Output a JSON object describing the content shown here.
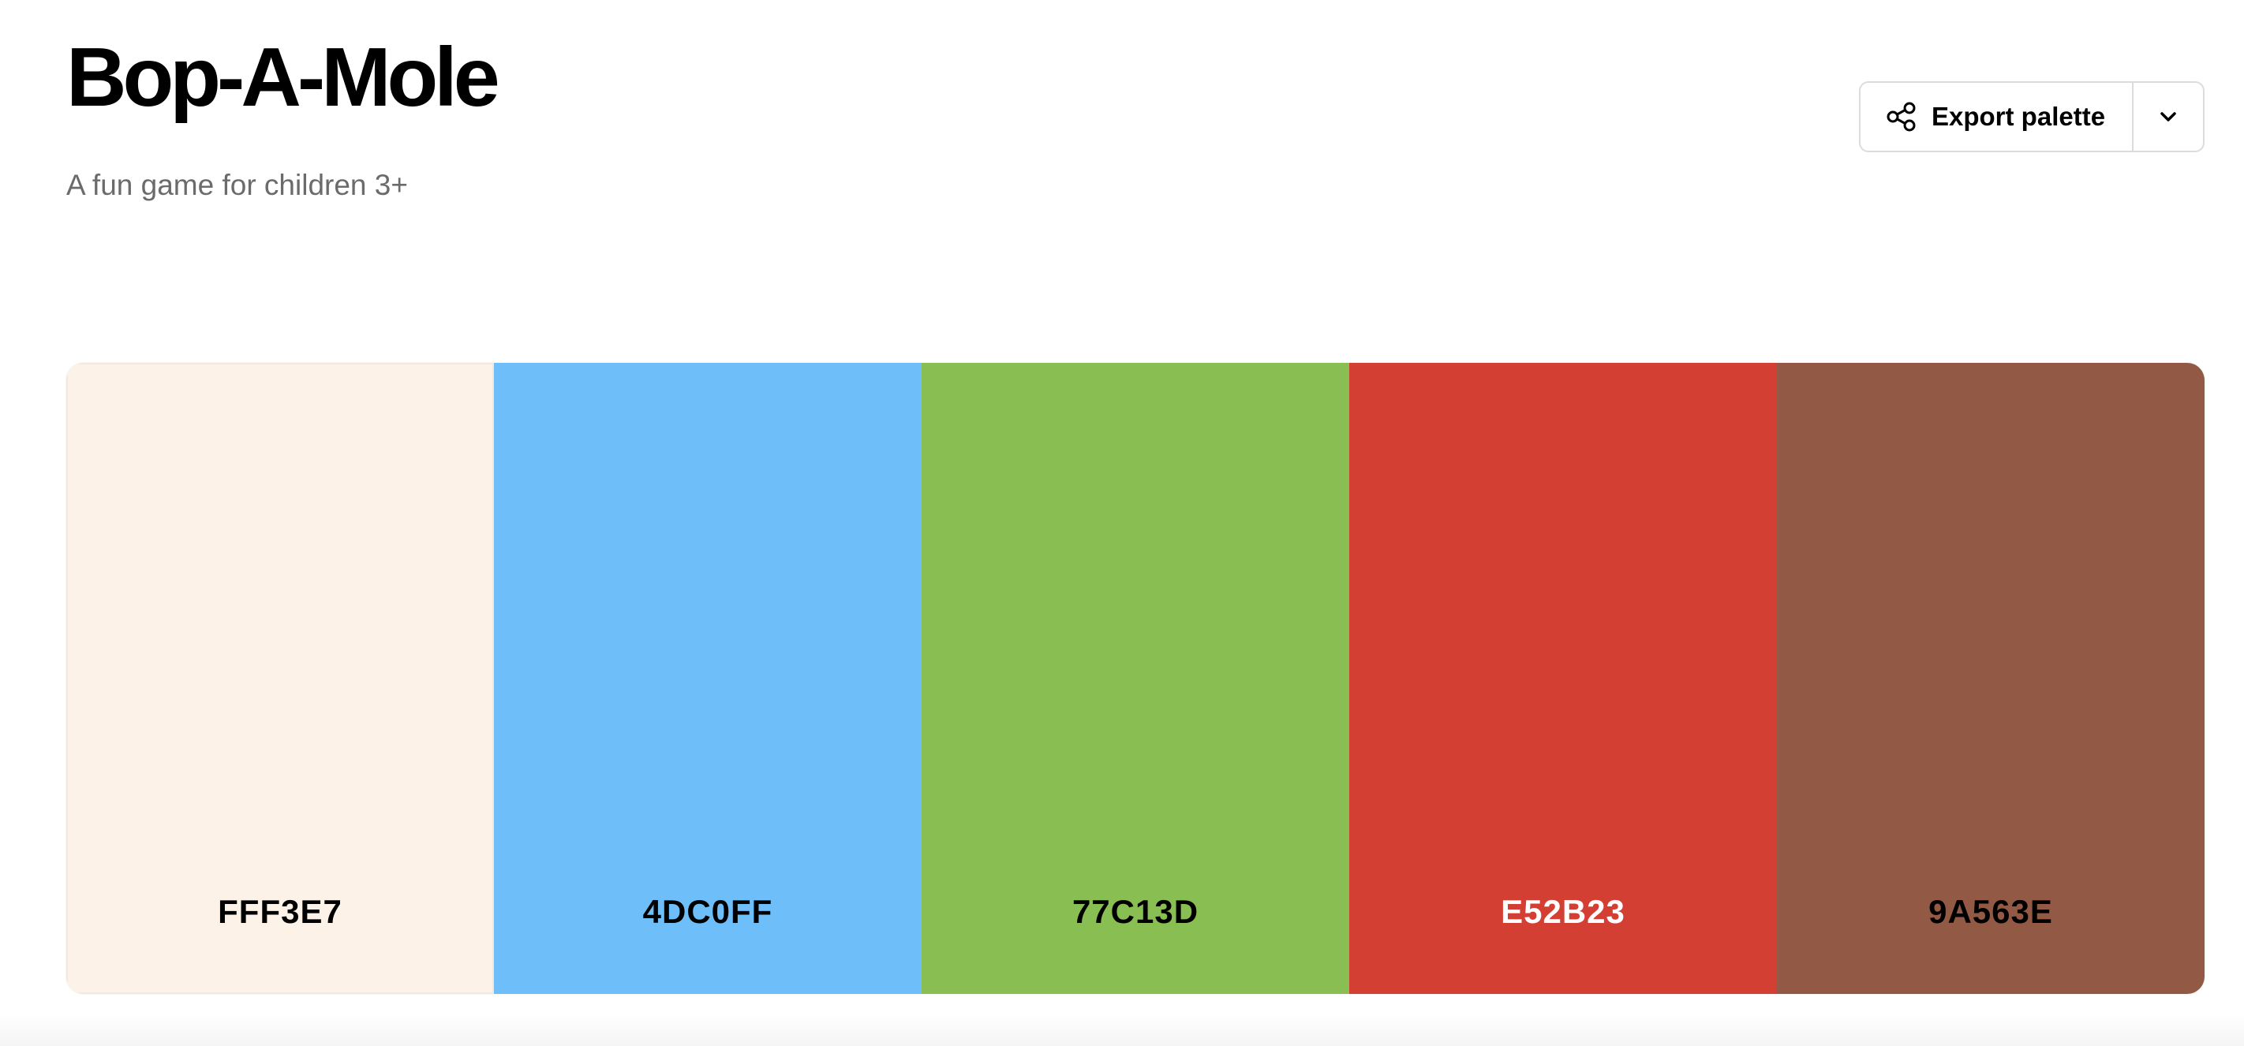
{
  "header": {
    "title": "Bop-A-Mole",
    "subtitle": "A fun game for children 3+"
  },
  "export": {
    "label": "Export palette",
    "icon": "share-icon",
    "dropdown_icon": "chevron-down-icon"
  },
  "palette": {
    "swatches": [
      {
        "hex": "FFF3E7",
        "color": "#FDF2E7",
        "text_color": "#000000"
      },
      {
        "hex": "4DC0FF",
        "color": "#6EBEF9",
        "text_color": "#000000"
      },
      {
        "hex": "77C13D",
        "color": "#89BF52",
        "text_color": "#000000"
      },
      {
        "hex": "E52B23",
        "color": "#D33F33",
        "text_color": "#FFFFFF"
      },
      {
        "hex": "9A563E",
        "color": "#925944",
        "text_color": "#000000"
      }
    ]
  }
}
